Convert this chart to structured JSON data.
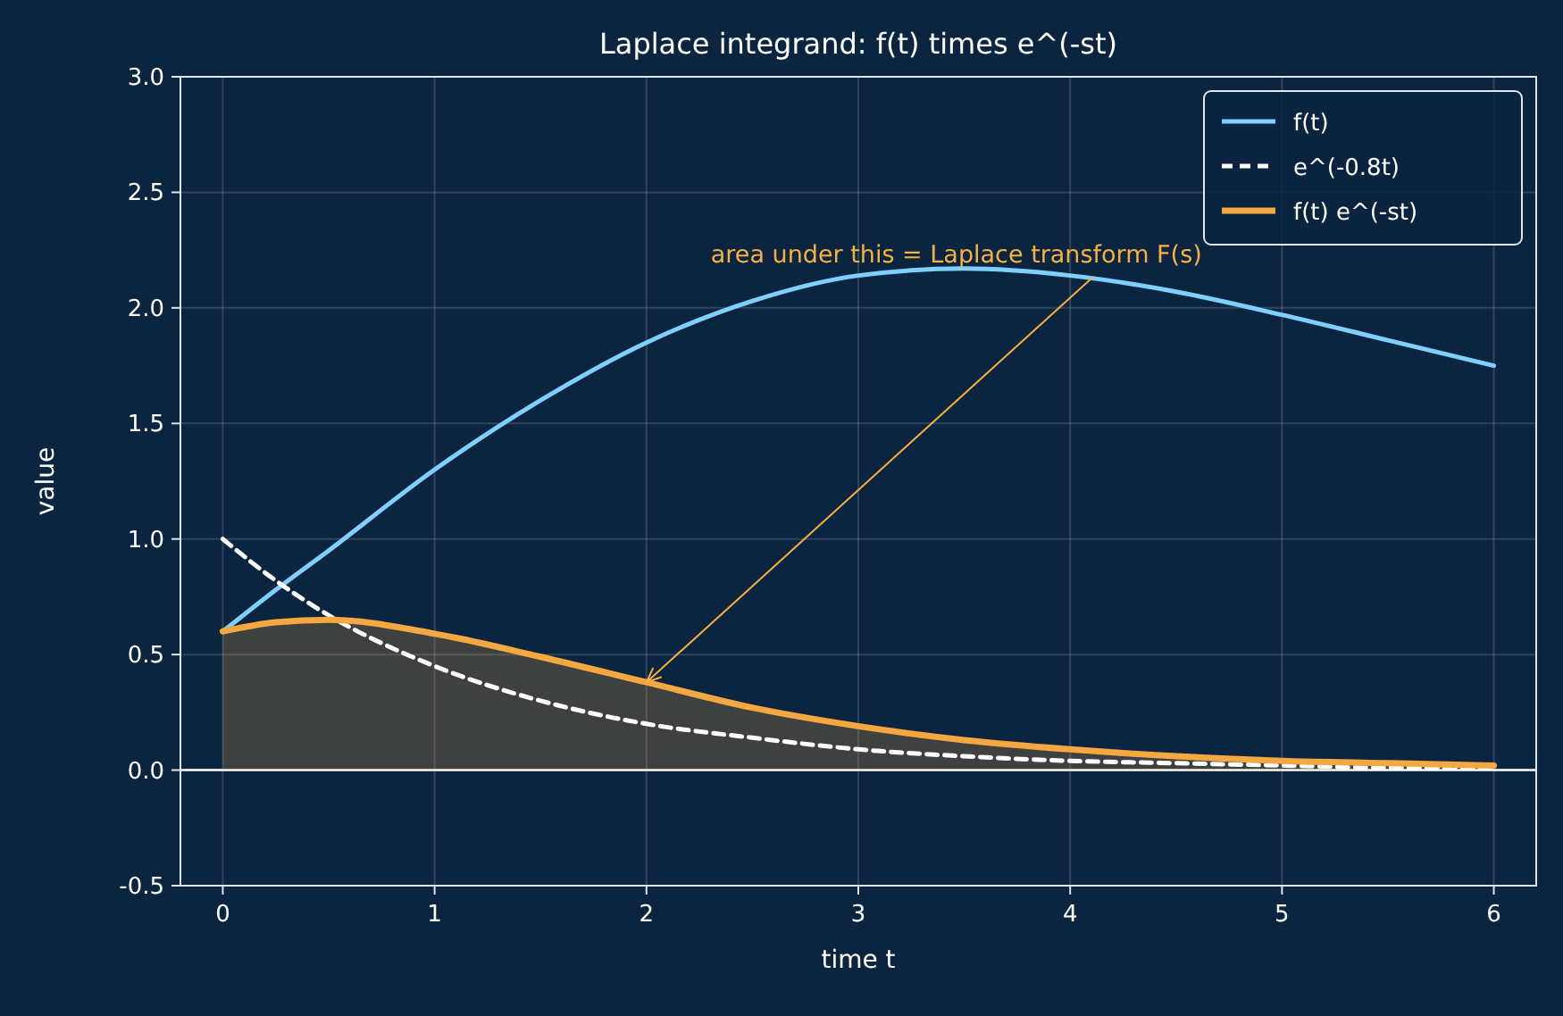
{
  "chart_data": {
    "type": "line",
    "title": "Laplace integrand: f(t) times e^(-st)",
    "xlabel": "time  t",
    "ylabel": "value",
    "x": [
      0,
      0.25,
      0.5,
      1,
      1.5,
      2,
      2.5,
      3,
      3.5,
      4,
      4.5,
      5,
      5.5,
      6
    ],
    "series": [
      {
        "name": "f(t)",
        "color": "#7fd0ff",
        "values": [
          0.6,
          0.78,
          0.95,
          1.3,
          1.6,
          1.85,
          2.03,
          2.14,
          2.17,
          2.14,
          2.07,
          1.97,
          1.86,
          1.75
        ]
      },
      {
        "name": "e^(-0.8t)",
        "color": "#ffffff",
        "line_style": "dashed",
        "values": [
          1,
          0.82,
          0.67,
          0.45,
          0.3,
          0.2,
          0.14,
          0.09,
          0.06,
          0.04,
          0.03,
          0.02,
          0.01,
          0.01
        ]
      },
      {
        "name": "f(t) e^(-st)",
        "type": "area",
        "color": "#f5a742",
        "values": [
          0.6,
          0.64,
          0.65,
          0.59,
          0.49,
          0.38,
          0.27,
          0.19,
          0.13,
          0.09,
          0.06,
          0.04,
          0.03,
          0.02
        ]
      }
    ],
    "xlim": [
      -0.2,
      6.2
    ],
    "ylim": [
      -0.5,
      3
    ],
    "xticks": [
      0,
      1,
      2,
      3,
      4,
      5,
      6
    ],
    "yticks": [
      -0.5,
      {
        "value": 0,
        "label": "0.0"
      },
      0.5,
      {
        "value": 1,
        "label": "1.0"
      },
      1.5,
      {
        "value": 2,
        "label": "2.0"
      },
      2.5,
      {
        "value": 3,
        "label": "3.0"
      }
    ],
    "grid": true,
    "legend": "top right",
    "ref_lines": [
      {
        "axis": "y",
        "value": 0,
        "color": "#ffffff"
      }
    ],
    "annotations": [
      {
        "text": "area under this = Laplace transform F(s)",
        "x": 2,
        "y": 0.38
      }
    ]
  }
}
